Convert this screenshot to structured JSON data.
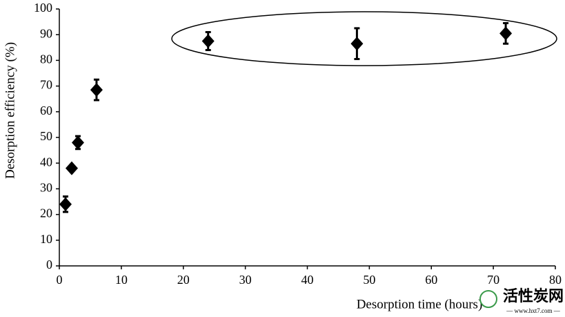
{
  "chart_data": {
    "type": "scatter",
    "x_label": "Desorption time (hours)",
    "y_label": "Desorption efficiency (%)",
    "x": [
      1,
      2,
      3,
      6,
      24,
      48,
      72
    ],
    "values": [
      24,
      38,
      48,
      68.5,
      87.5,
      86.5,
      90.5
    ],
    "errors": [
      3,
      1,
      2.5,
      4,
      3.5,
      6,
      4
    ],
    "color": "#000000",
    "xlim": [
      0,
      80
    ],
    "xticks": [
      0,
      10,
      20,
      30,
      40,
      50,
      60,
      70,
      80
    ],
    "ylim": [
      0,
      100
    ],
    "yticks": [
      0,
      10,
      20,
      30,
      40,
      50,
      60,
      70,
      80,
      90,
      100
    ],
    "grid": false
  },
  "watermark": {
    "title": "活性炭网",
    "url": "— www.hxt7.com —"
  }
}
